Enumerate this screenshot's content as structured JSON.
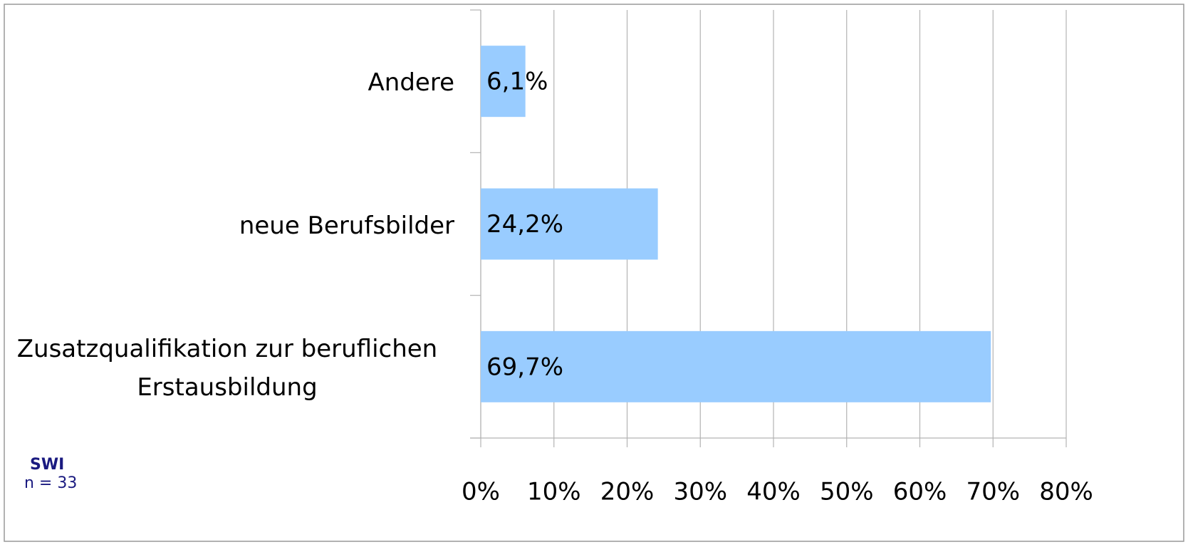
{
  "chart_data": {
    "type": "barh",
    "categories": [
      "Andere",
      "neue Berufsbilder",
      "Zusatzqualifikation zur beruflichen Erstausbildung"
    ],
    "values": [
      6.1,
      24.2,
      69.7
    ],
    "value_labels": [
      "6,1%",
      "24,2%",
      "69,7%"
    ],
    "color": "#99ccff",
    "xlim": [
      0,
      80
    ],
    "xticks": [
      {
        "value": 0,
        "label": "0%"
      },
      {
        "value": 10,
        "label": "10%"
      },
      {
        "value": 20,
        "label": "20%"
      },
      {
        "value": 30,
        "label": "30%"
      },
      {
        "value": 40,
        "label": "40%"
      },
      {
        "value": 50,
        "label": "50%"
      },
      {
        "value": 60,
        "label": "60%"
      },
      {
        "value": 70,
        "label": "70%"
      },
      {
        "value": 80,
        "label": "80%"
      }
    ],
    "grid": true,
    "source": "SWI",
    "note": "n = 33"
  }
}
